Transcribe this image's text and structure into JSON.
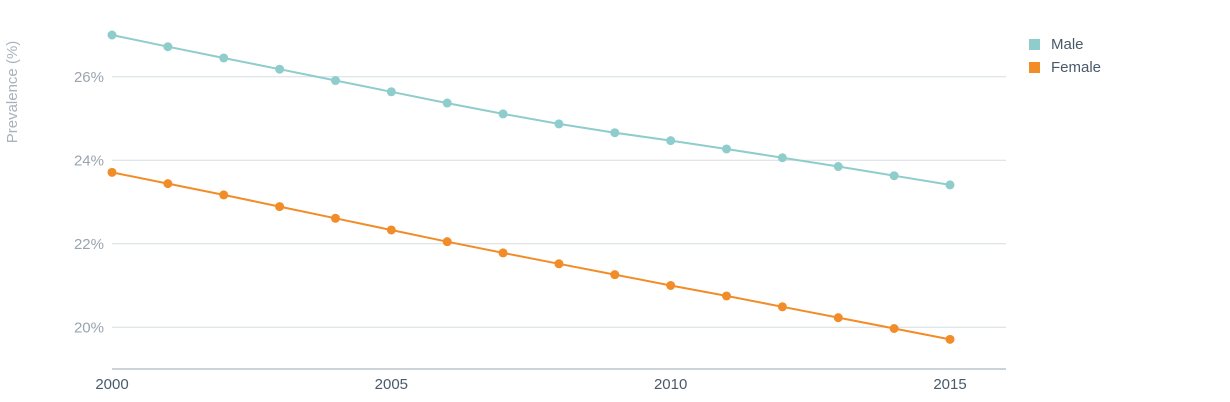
{
  "chart_data": {
    "type": "line",
    "ylabel": "Prevalence (%)",
    "xlabel": "",
    "x": [
      2000,
      2001,
      2002,
      2003,
      2004,
      2005,
      2006,
      2007,
      2008,
      2009,
      2010,
      2011,
      2012,
      2013,
      2014,
      2015
    ],
    "xticks": [
      2000,
      2005,
      2010,
      2015
    ],
    "yticks": [
      20,
      22,
      24,
      26
    ],
    "ytick_labels": [
      "20%",
      "22%",
      "24%",
      "26%"
    ],
    "xlim": [
      2000,
      2016
    ],
    "ylim": [
      19,
      27
    ],
    "grid": true,
    "legend_position": "top-right",
    "series": [
      {
        "name": "Male",
        "color": "#8ecdcb",
        "values": [
          27.0,
          26.72,
          26.45,
          26.18,
          25.91,
          25.64,
          25.37,
          25.11,
          24.87,
          24.66,
          24.47,
          24.27,
          24.06,
          23.85,
          23.63,
          23.41
        ]
      },
      {
        "name": "Female",
        "color": "#f28c28",
        "values": [
          23.71,
          23.44,
          23.17,
          22.89,
          22.61,
          22.33,
          22.05,
          21.78,
          21.52,
          21.26,
          21.0,
          20.75,
          20.49,
          20.23,
          19.97,
          19.71
        ]
      }
    ],
    "colors": {
      "grid": "#d4dde4",
      "axis": "#9aa7b2",
      "tick_text_y": "#9aa4ae",
      "tick_text_x": "#4a5a6a",
      "axis_title": "#a8b2bb"
    }
  }
}
